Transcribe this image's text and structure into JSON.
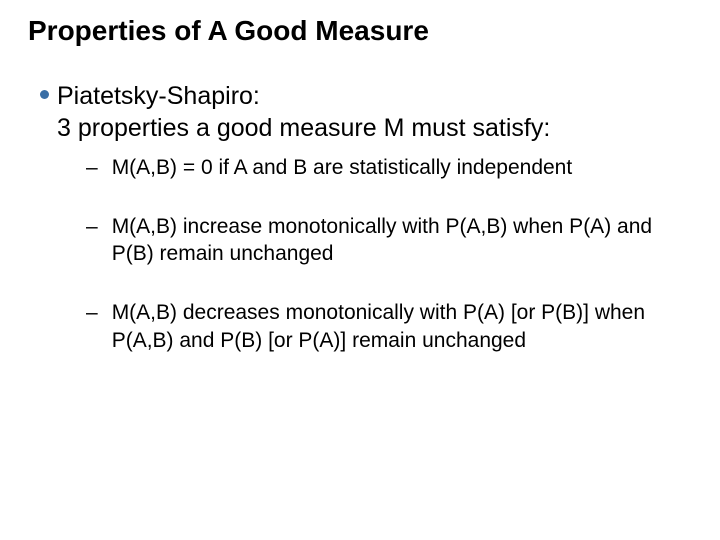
{
  "colors": {
    "background": "#ffffff",
    "text": "#000000",
    "bullet": "#3a6ea5"
  },
  "typography": {
    "title_fontsize": 28,
    "title_weight": 700,
    "l1_fontsize": 25,
    "l2_fontsize": 21,
    "font_family": "Arial"
  },
  "title": "Properties of A Good Measure",
  "body": {
    "l1_line1": "Piatetsky-Shapiro:",
    "l1_line2": "3 properties a good measure M must satisfy:",
    "subitems": [
      {
        "text": "M(A,B) = 0 if A and B are statistically independent"
      },
      {
        "text": "M(A,B) increase monotonically with P(A,B) when P(A) and P(B) remain unchanged"
      },
      {
        "text": "M(A,B) decreases monotonically with P(A) [or P(B)] when P(A,B) and P(B) [or P(A)] remain unchanged"
      }
    ]
  },
  "dash_glyph": "–"
}
